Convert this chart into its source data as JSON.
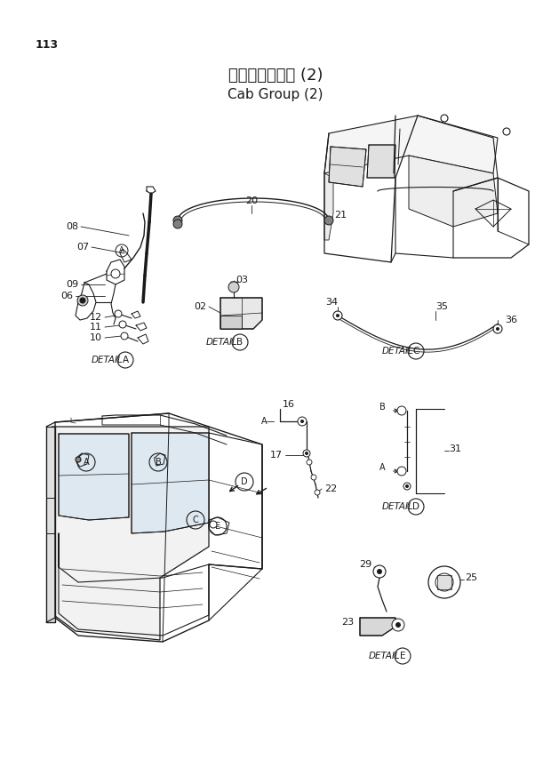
{
  "page_number": "113",
  "title_japanese": "キャブグループ (2)",
  "title_english": "Cab Group (2)",
  "bg_color": "#ffffff",
  "line_color": "#1a1a1a",
  "title_fontsize": 13,
  "label_fontsize": 8,
  "figsize": [
    6.2,
    8.73
  ],
  "dpi": 100
}
